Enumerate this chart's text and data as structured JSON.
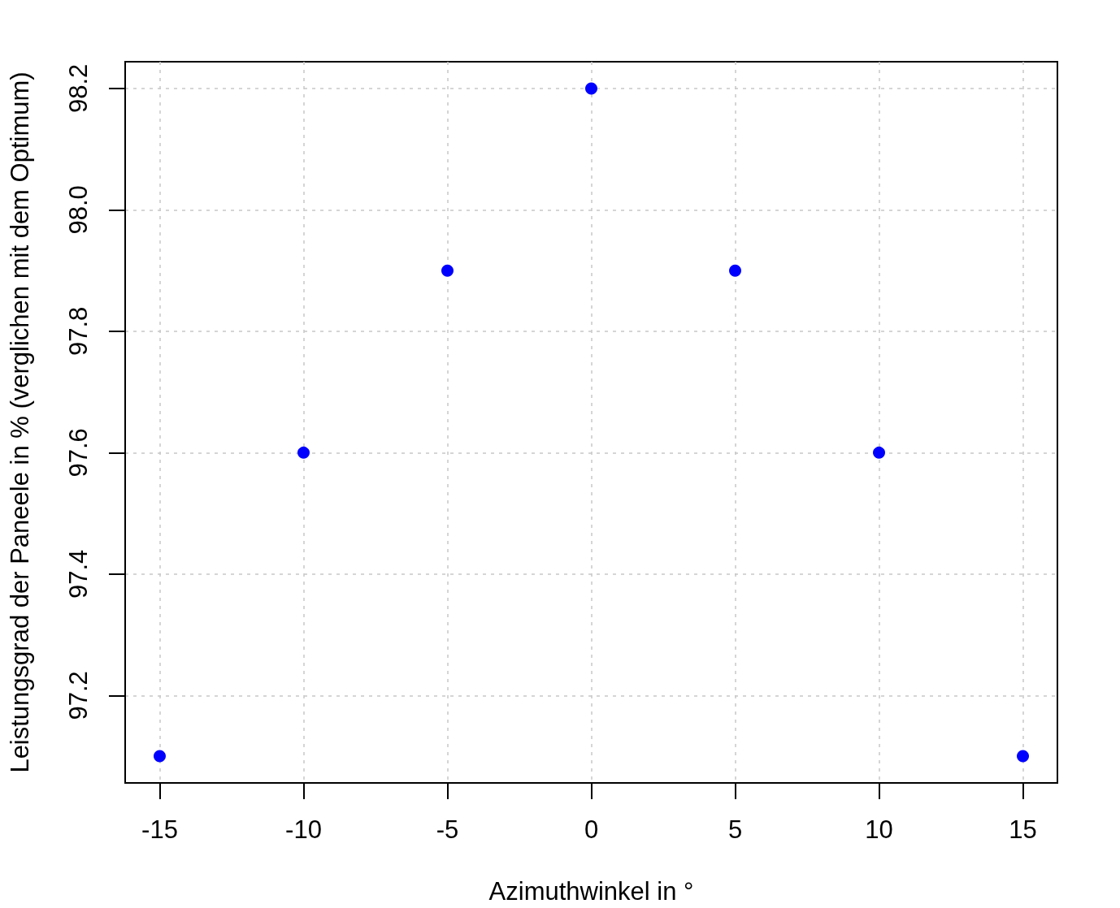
{
  "chart_data": {
    "type": "scatter",
    "xlabel": "Azimuthwinkel in °",
    "ylabel": "Leistungsgrad der Paneele in % (verglichen mit dem Optimum)",
    "x": [
      -15,
      -10,
      -5,
      0,
      5,
      10,
      15
    ],
    "series": [
      {
        "color": "#0000ff",
        "values": [
          97.1,
          97.6,
          97.9,
          98.2,
          97.9,
          97.6,
          97.1
        ]
      }
    ],
    "xlim": [
      -16.2,
      16.2
    ],
    "ylim": [
      97.056,
      98.244
    ],
    "xticks": [
      -15,
      -10,
      -5,
      0,
      5,
      10,
      15
    ],
    "yticks": [
      97.2,
      97.4,
      97.6,
      97.8,
      {
        "value": 98,
        "label": "98.0"
      },
      98.2
    ],
    "grid": true,
    "marker": "circle"
  }
}
